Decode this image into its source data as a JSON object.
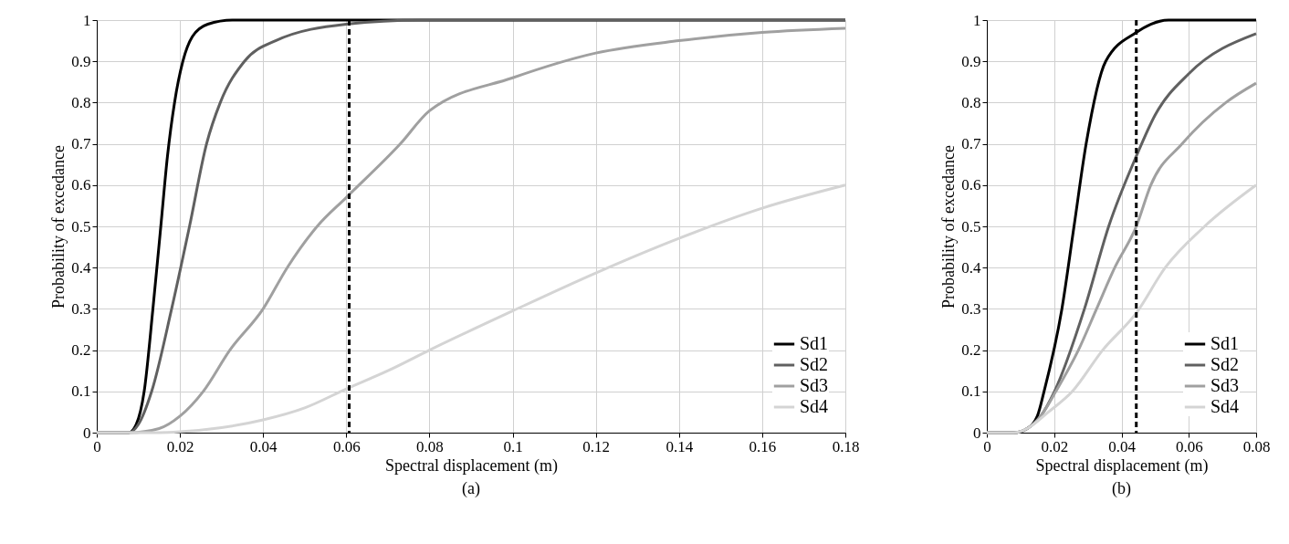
{
  "chart_data": [
    {
      "type": "line",
      "xlabel": "Spectral displacement (m)",
      "ylabel": "Probability of excedance",
      "annotations": [
        "(a)"
      ],
      "xlim": [
        0,
        0.18
      ],
      "xticks": [
        0,
        0.02,
        0.04,
        0.06,
        0.08,
        0.1,
        0.12,
        0.14,
        0.16,
        0.18
      ],
      "ylim": [
        0,
        1
      ],
      "yticks": [
        0,
        0.1,
        0.2,
        0.3,
        0.4,
        0.5,
        0.6,
        0.7,
        0.8,
        0.9,
        1
      ],
      "grid": true,
      "legend": "bottom right",
      "marker": "none",
      "line_style": "solid",
      "ref_lines": [
        {
          "axis": "x",
          "value": 0.0607,
          "color": "#000000",
          "line_style": "dashed"
        }
      ],
      "series": [
        {
          "name": "Sd1",
          "color": "#000000",
          "x": [
            0,
            0.0077,
            0.0095,
            0.0114,
            0.0135,
            0.0154,
            0.017,
            0.0187,
            0.0207,
            0.023,
            0.0267,
            0.0326,
            0.06,
            0.18
          ],
          "values": [
            0,
            0,
            0.02,
            0.1,
            0.3,
            0.5,
            0.67,
            0.8,
            0.9,
            0.96,
            0.99,
            1,
            1,
            1
          ]
        },
        {
          "name": "Sd2",
          "color": "#606060",
          "x": [
            0,
            0.0077,
            0.01,
            0.0132,
            0.018,
            0.0223,
            0.0264,
            0.0297,
            0.0355,
            0.043,
            0.06,
            0.078,
            0.18
          ],
          "values": [
            0,
            0,
            0.02,
            0.1,
            0.3,
            0.5,
            0.7,
            0.8,
            0.9,
            0.95,
            0.99,
            1,
            1
          ]
        },
        {
          "name": "Sd3",
          "color": "#a0a0a0",
          "x": [
            0,
            0.008,
            0.015,
            0.02,
            0.0256,
            0.032,
            0.04,
            0.0458,
            0.053,
            0.06,
            0.073,
            0.08,
            0.1,
            0.12,
            0.14,
            0.16,
            0.18
          ],
          "values": [
            0,
            0,
            0.01,
            0.04,
            0.1,
            0.2,
            0.3,
            0.4,
            0.5,
            0.57,
            0.7,
            0.78,
            0.86,
            0.92,
            0.95,
            0.97,
            0.98
          ]
        },
        {
          "name": "Sd4",
          "color": "#d4d4d4",
          "x": [
            0,
            0.015,
            0.02,
            0.03,
            0.04,
            0.05,
            0.06,
            0.07,
            0.08,
            0.1,
            0.12,
            0.14,
            0.16,
            0.18
          ],
          "values": [
            0,
            0,
            0.002,
            0.012,
            0.031,
            0.06,
            0.106,
            0.15,
            0.2,
            0.295,
            0.387,
            0.471,
            0.544,
            0.6
          ]
        }
      ]
    },
    {
      "type": "line",
      "xlabel": "Spectral displacement (m)",
      "ylabel": "Probability of excedance",
      "annotations": [
        "(b)"
      ],
      "xlim": [
        0,
        0.08
      ],
      "xticks": [
        0,
        0.02,
        0.04,
        0.06,
        0.08
      ],
      "ylim": [
        0,
        1
      ],
      "yticks": [
        0,
        0.1,
        0.2,
        0.3,
        0.4,
        0.5,
        0.6,
        0.7,
        0.8,
        0.9,
        1
      ],
      "grid": true,
      "legend": "bottom right",
      "marker": "none",
      "line_style": "solid",
      "ref_lines": [
        {
          "axis": "x",
          "value": 0.0444,
          "color": "#000000",
          "line_style": "dashed"
        }
      ],
      "series": [
        {
          "name": "Sd1",
          "color": "#000000",
          "x": [
            0,
            0.008,
            0.012,
            0.015,
            0.017,
            0.0223,
            0.0259,
            0.0295,
            0.0353,
            0.0444,
            0.0487,
            0.054,
            0.08
          ],
          "values": [
            0,
            0,
            0.01,
            0.04,
            0.1,
            0.3,
            0.5,
            0.7,
            0.9,
            0.97,
            0.99,
            1,
            1
          ]
        },
        {
          "name": "Sd2",
          "color": "#606060",
          "x": [
            0,
            0.008,
            0.012,
            0.016,
            0.0201,
            0.029,
            0.0362,
            0.0444,
            0.05,
            0.06,
            0.08
          ],
          "values": [
            0,
            0,
            0.01,
            0.04,
            0.1,
            0.3,
            0.5,
            0.67,
            0.77,
            0.87,
            0.967
          ]
        },
        {
          "name": "Sd3",
          "color": "#a0a0a0",
          "x": [
            0,
            0.008,
            0.012,
            0.016,
            0.0205,
            0.0272,
            0.0326,
            0.038,
            0.0444,
            0.0487,
            0.058,
            0.071,
            0.08
          ],
          "values": [
            0,
            0,
            0.01,
            0.04,
            0.1,
            0.2,
            0.3,
            0.4,
            0.5,
            0.6,
            0.7,
            0.8,
            0.847
          ]
        },
        {
          "name": "Sd4",
          "color": "#d4d4d4",
          "x": [
            0,
            0.008,
            0.012,
            0.0183,
            0.0254,
            0.0344,
            0.0444,
            0.053,
            0.0647,
            0.08
          ],
          "values": [
            0,
            0,
            0.01,
            0.05,
            0.1,
            0.2,
            0.29,
            0.4,
            0.5,
            0.6
          ]
        }
      ]
    }
  ]
}
